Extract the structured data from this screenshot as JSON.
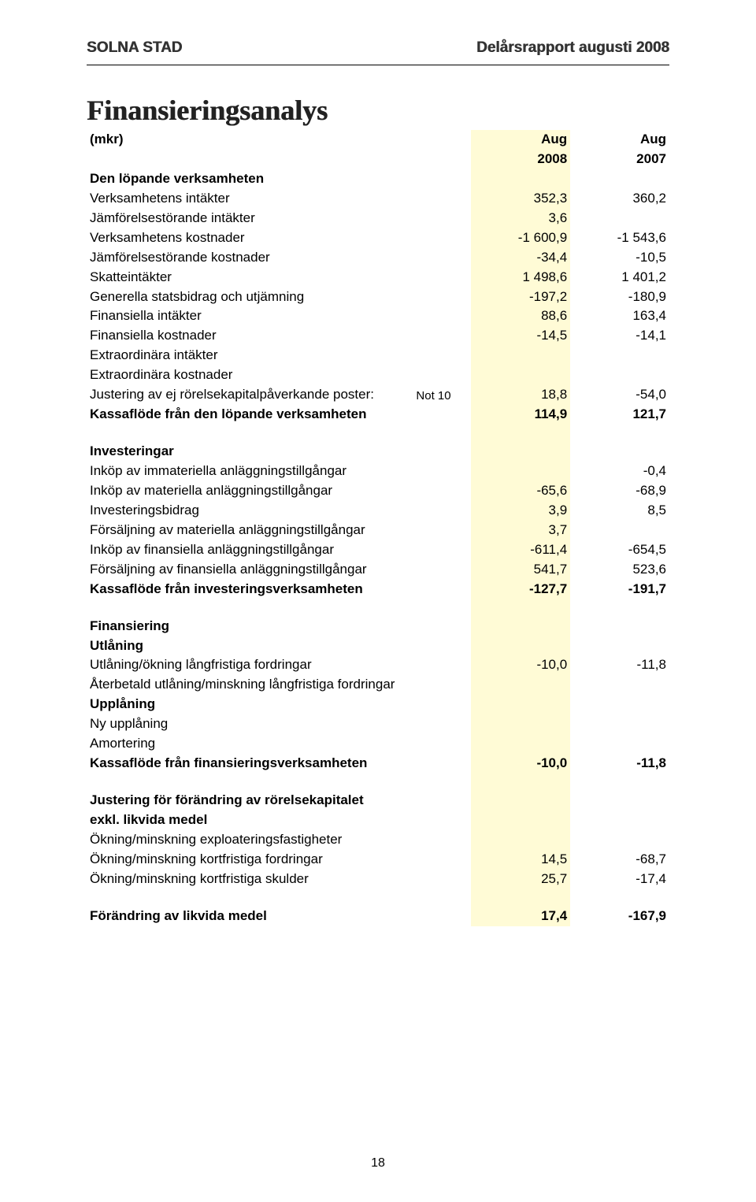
{
  "colors": {
    "shade_bg": "#fffbd6",
    "text": "#000000",
    "header_text": "#333333",
    "rule": "#000000",
    "page_bg": "#ffffff"
  },
  "typography": {
    "body_family": "Arial, Helvetica, sans-serif",
    "title_family": "Georgia, Times New Roman, serif",
    "body_size_pt": 12,
    "title_size_pt": 27,
    "header_size_pt": 14
  },
  "header": {
    "left": "SOLNA STAD",
    "right": "Delårsrapport augusti 2008"
  },
  "title": "Finansieringsanalys",
  "col_headers": {
    "unit": "(mkr)",
    "c1_line1": "Aug",
    "c1_line2": "2008",
    "c2_line1": "Aug",
    "c2_line2": "2007"
  },
  "sections": [
    {
      "heading": "Den löpande verksamheten",
      "rows": [
        {
          "label": "Verksamhetens intäkter",
          "c1": "352,3",
          "c2": "360,2",
          "shade_c1": true
        },
        {
          "label": "Jämförelsestörande intäkter",
          "c1": "3,6",
          "c2": "",
          "shade_c1": true
        },
        {
          "label": "Verksamhetens kostnader",
          "c1": "-1 600,9",
          "c2": "-1 543,6",
          "shade_c1": true
        },
        {
          "label": "Jämförelsestörande kostnader",
          "c1": "-34,4",
          "c2": "-10,5",
          "shade_c1": true
        },
        {
          "label": "Skatteintäkter",
          "c1": "1 498,6",
          "c2": "1 401,2",
          "shade_c1": true
        },
        {
          "label": "Generella statsbidrag och utjämning",
          "c1": "-197,2",
          "c2": "-180,9",
          "shade_c1": true
        },
        {
          "label": "Finansiella intäkter",
          "c1": "88,6",
          "c2": "163,4",
          "shade_c1": true
        },
        {
          "label": "Finansiella kostnader",
          "c1": "-14,5",
          "c2": "-14,1",
          "shade_c1": true
        },
        {
          "label": "Extraordinära intäkter",
          "c1": "",
          "c2": "",
          "shade_c1": true
        },
        {
          "label": "Extraordinära kostnader",
          "c1": "",
          "c2": "",
          "shade_c1": true
        },
        {
          "label": "Justering av ej rörelsekapitalpåverkande poster:",
          "note": "Not 10",
          "c1": "18,8",
          "c2": "-54,0",
          "shade_c1": true
        },
        {
          "label": "Kassaflöde från den löpande verksamheten",
          "c1": "114,9",
          "c2": "121,7",
          "bold": true,
          "shade_c1": true
        }
      ]
    },
    {
      "heading": "Investeringar",
      "rows": [
        {
          "label": "Inköp av immateriella anläggningstillgångar",
          "c1": "",
          "c2": "-0,4",
          "shade_c1": true
        },
        {
          "label": "Inköp av materiella anläggningstillgångar",
          "c1": "-65,6",
          "c2": "-68,9",
          "shade_c1": true
        },
        {
          "label": "Investeringsbidrag",
          "c1": "3,9",
          "c2": "8,5",
          "shade_c1": true
        },
        {
          "label": "Försäljning av materiella anläggningstillgångar",
          "c1": "3,7",
          "c2": "",
          "shade_c1": true
        },
        {
          "label": "Inköp av finansiella anläggningstillgångar",
          "c1": "-611,4",
          "c2": "-654,5",
          "shade_c1": true
        },
        {
          "label": "Försäljning av finansiella anläggningstillgångar",
          "c1": "541,7",
          "c2": "523,6",
          "shade_c1": true
        },
        {
          "label": "Kassaflöde från investeringsverksamheten",
          "c1": "-127,7",
          "c2": "-191,7",
          "bold": true,
          "shade_c1": true
        }
      ]
    },
    {
      "heading": "Finansiering",
      "rows": [
        {
          "label": "Utlåning",
          "bold": true,
          "c1": "",
          "c2": "",
          "shade_c1": true
        },
        {
          "label": "Utlåning/ökning långfristiga fordringar",
          "c1": "-10,0",
          "c2": "-11,8",
          "shade_c1": true
        },
        {
          "label": "Återbetald utlåning/minskning långfristiga fordringar",
          "c1": "",
          "c2": "",
          "shade_c1": true
        },
        {
          "label": "Upplåning",
          "bold": true,
          "c1": "",
          "c2": "",
          "shade_c1": true
        },
        {
          "label": "Ny upplåning",
          "c1": "",
          "c2": "",
          "shade_c1": true
        },
        {
          "label": "Amortering",
          "c1": "",
          "c2": "",
          "shade_c1": true
        },
        {
          "label": "Kassaflöde från finansieringsverksamheten",
          "c1": "-10,0",
          "c2": "-11,8",
          "bold": true,
          "shade_c1": true
        }
      ]
    },
    {
      "heading": "Justering för förändring av rörelsekapitalet",
      "heading2": "exkl. likvida medel",
      "rows": [
        {
          "label": "Ökning/minskning exploateringsfastigheter",
          "c1": "",
          "c2": "",
          "shade_c1": true
        },
        {
          "label": "Ökning/minskning kortfristiga fordringar",
          "c1": "14,5",
          "c2": "-68,7",
          "shade_c1": true
        },
        {
          "label": "Ökning/minskning kortfristiga skulder",
          "c1": "25,7",
          "c2": "-17,4",
          "shade_c1": true
        }
      ]
    }
  ],
  "final_row": {
    "label": "Förändring av likvida medel",
    "c1": "17,4",
    "c2": "-167,9",
    "bold": true,
    "shade_c1": true
  },
  "page_number": "18"
}
